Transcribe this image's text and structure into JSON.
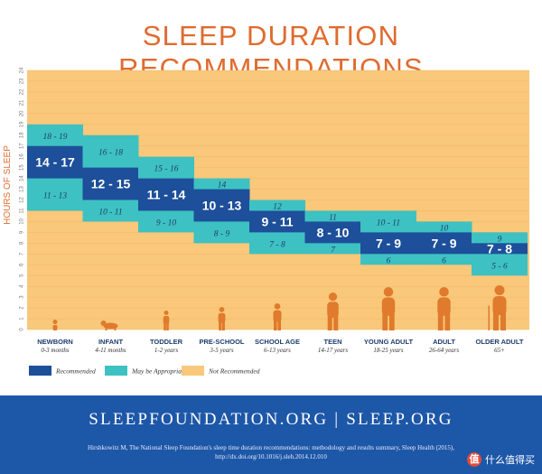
{
  "title": "SLEEP DURATION RECOMMENDATIONS",
  "colors": {
    "recommended": "#1d4f9a",
    "may_be_appropriate": "#3ec1c2",
    "not_recommended": "#f9c87a",
    "accent": "#e06b2e",
    "footer": "#1d57a8",
    "silhouette": "#e07a2c"
  },
  "chart_data": {
    "type": "bar",
    "ylabel": "HOURS OF SLEEP",
    "ylim": [
      0,
      24
    ],
    "yticks": [
      "0",
      "1",
      "2",
      "3",
      "4",
      "5",
      "6",
      "7",
      "8",
      "9",
      "10",
      "11",
      "12",
      "13",
      "14",
      "15",
      "16",
      "17",
      "18",
      "19",
      "20",
      "21",
      "22",
      "23",
      "24"
    ],
    "categories": [
      {
        "name": "NEWBORN",
        "ages": "0-3 months"
      },
      {
        "name": "INFANT",
        "ages": "4-11 months"
      },
      {
        "name": "TODDLER",
        "ages": "1-2 years"
      },
      {
        "name": "PRE-SCHOOL",
        "ages": "3-5 years"
      },
      {
        "name": "SCHOOL AGE",
        "ages": "6-13 years"
      },
      {
        "name": "TEEN",
        "ages": "14-17 years"
      },
      {
        "name": "YOUNG ADULT",
        "ages": "18-25 years"
      },
      {
        "name": "ADULT",
        "ages": "26-64 years"
      },
      {
        "name": "OLDER ADULT",
        "ages": "65+"
      }
    ],
    "series": [
      {
        "name": "Recommended",
        "ranges": [
          [
            14,
            17
          ],
          [
            12,
            15
          ],
          [
            11,
            14
          ],
          [
            10,
            13
          ],
          [
            9,
            11
          ],
          [
            8,
            10
          ],
          [
            7,
            9
          ],
          [
            7,
            9
          ],
          [
            7,
            8
          ]
        ],
        "labels": [
          "14 - 17",
          "12 - 15",
          "11 - 14",
          "10 - 13",
          "9 - 11",
          "8 - 10",
          "7 - 9",
          "7 - 9",
          "7 - 8"
        ]
      },
      {
        "name": "May be Appropriate",
        "ranges": [
          [
            11,
            19
          ],
          [
            10,
            18
          ],
          [
            9,
            16
          ],
          [
            8,
            14
          ],
          [
            7,
            12
          ],
          [
            7,
            11
          ],
          [
            6,
            11
          ],
          [
            6,
            10
          ],
          [
            5,
            9
          ]
        ],
        "upper_labels": [
          "18 - 19",
          "16 - 18",
          "15 - 16",
          "14",
          "12",
          "11",
          "10 - 11",
          "10",
          "9"
        ],
        "lower_labels": [
          "11 - 13",
          "10 - 11",
          "9 - 10",
          "8 - 9",
          "7 - 8",
          "7",
          "6",
          "6",
          "5 - 6"
        ]
      },
      {
        "name": "Not Recommended"
      }
    ],
    "legend": {
      "position": "bottom-left",
      "items": [
        {
          "label": "Recommended",
          "color": "#1d4f9a"
        },
        {
          "label": "May be Appropriate",
          "color": "#3ec1c2"
        },
        {
          "label": "Not Recommended",
          "color": "#f9c87a"
        }
      ]
    }
  },
  "footer": {
    "urls": "SLEEPFOUNDATION.ORG | SLEEP.ORG",
    "citation_line1": "Hirshkowitz M, The National Sleep Foundation's sleep time duration recommendations: methodology and results summary, Sleep Health (2015),",
    "citation_line2": "http://dx.doi.org/10.1016/j.sleh.2014.12.010"
  },
  "watermark": {
    "badge": "值",
    "text": "什么值得买"
  }
}
